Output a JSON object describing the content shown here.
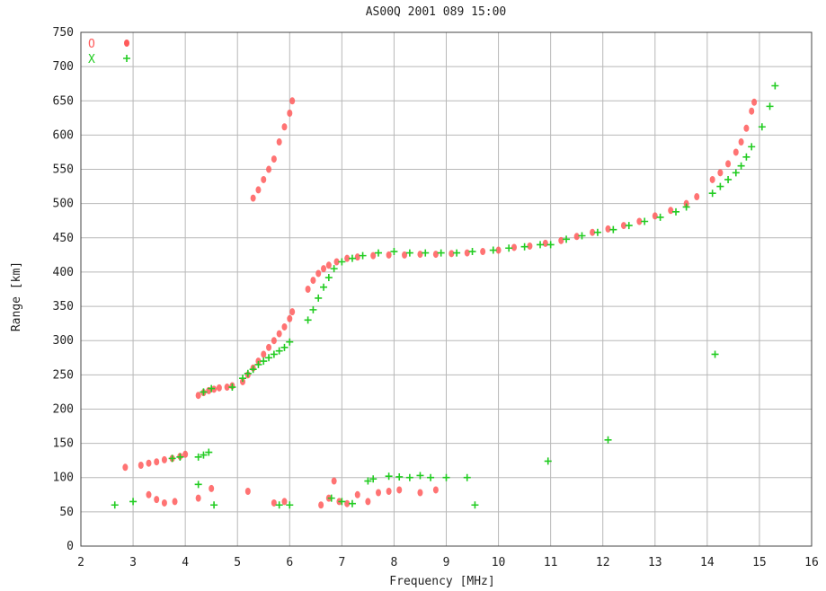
{
  "chart_data": {
    "type": "scatter",
    "title": "AS00Q 2001 089 15:00",
    "xlabel": "Frequency [MHz]",
    "ylabel": "Range [km]",
    "xlim": [
      2,
      16
    ],
    "ylim": [
      0,
      750
    ],
    "xticks": [
      "2",
      "3",
      "4",
      "5",
      "6",
      "7",
      "8",
      "9",
      "10",
      "11",
      "12",
      "13",
      "14",
      "15",
      "16"
    ],
    "yticks": [
      "0",
      "50",
      "100",
      "150",
      "200",
      "250",
      "300",
      "350",
      "400",
      "450",
      "500",
      "550",
      "600",
      "650",
      "700",
      "750"
    ],
    "grid": true,
    "legend_placement": "top-left",
    "series": [
      {
        "name": "O",
        "color": "#ff5a5a",
        "marker": "dot",
        "legend_symbol": "o",
        "points": [
          [
            2.85,
            115
          ],
          [
            3.15,
            118
          ],
          [
            3.3,
            121
          ],
          [
            3.45,
            123
          ],
          [
            3.6,
            126
          ],
          [
            3.75,
            128
          ],
          [
            3.9,
            131
          ],
          [
            4.0,
            134
          ],
          [
            4.25,
            220
          ],
          [
            4.35,
            224
          ],
          [
            4.45,
            227
          ],
          [
            4.55,
            229
          ],
          [
            4.65,
            231
          ],
          [
            4.8,
            232
          ],
          [
            4.9,
            234
          ],
          [
            5.1,
            240
          ],
          [
            5.2,
            250
          ],
          [
            5.3,
            260
          ],
          [
            5.4,
            270
          ],
          [
            5.5,
            280
          ],
          [
            5.6,
            290
          ],
          [
            5.7,
            300
          ],
          [
            5.8,
            310
          ],
          [
            5.9,
            320
          ],
          [
            6.0,
            332
          ],
          [
            6.05,
            342
          ],
          [
            6.35,
            375
          ],
          [
            6.45,
            388
          ],
          [
            6.55,
            398
          ],
          [
            6.65,
            405
          ],
          [
            6.75,
            410
          ],
          [
            6.9,
            415
          ],
          [
            7.1,
            420
          ],
          [
            7.3,
            422
          ],
          [
            7.6,
            424
          ],
          [
            7.9,
            425
          ],
          [
            8.2,
            425
          ],
          [
            8.5,
            426
          ],
          [
            8.8,
            426
          ],
          [
            9.1,
            427
          ],
          [
            9.4,
            428
          ],
          [
            9.7,
            430
          ],
          [
            10.0,
            432
          ],
          [
            10.3,
            436
          ],
          [
            10.6,
            438
          ],
          [
            10.9,
            442
          ],
          [
            11.2,
            446
          ],
          [
            11.5,
            452
          ],
          [
            11.8,
            458
          ],
          [
            12.1,
            463
          ],
          [
            12.4,
            468
          ],
          [
            12.7,
            474
          ],
          [
            13.0,
            482
          ],
          [
            13.3,
            490
          ],
          [
            13.6,
            500
          ],
          [
            13.8,
            510
          ],
          [
            14.1,
            535
          ],
          [
            14.25,
            545
          ],
          [
            14.4,
            558
          ],
          [
            14.55,
            575
          ],
          [
            14.65,
            590
          ],
          [
            14.75,
            610
          ],
          [
            14.85,
            635
          ],
          [
            14.9,
            648
          ],
          [
            5.3,
            508
          ],
          [
            5.4,
            520
          ],
          [
            5.5,
            535
          ],
          [
            5.6,
            550
          ],
          [
            5.7,
            565
          ],
          [
            5.8,
            590
          ],
          [
            5.9,
            612
          ],
          [
            6.0,
            632
          ],
          [
            6.05,
            650
          ],
          [
            3.3,
            75
          ],
          [
            3.45,
            68
          ],
          [
            3.6,
            63
          ],
          [
            3.8,
            65
          ],
          [
            4.25,
            70
          ],
          [
            4.5,
            84
          ],
          [
            5.2,
            80
          ],
          [
            5.7,
            63
          ],
          [
            5.9,
            65
          ],
          [
            6.6,
            60
          ],
          [
            6.75,
            70
          ],
          [
            6.85,
            95
          ],
          [
            6.95,
            65
          ],
          [
            7.1,
            62
          ],
          [
            7.3,
            75
          ],
          [
            7.5,
            65
          ],
          [
            7.7,
            78
          ],
          [
            7.9,
            80
          ],
          [
            8.1,
            82
          ],
          [
            8.5,
            78
          ],
          [
            8.8,
            82
          ]
        ]
      },
      {
        "name": "X",
        "color": "#22cc22",
        "marker": "plus",
        "legend_symbol": "+",
        "points": [
          [
            2.65,
            60
          ],
          [
            3.0,
            65
          ],
          [
            3.75,
            128
          ],
          [
            3.9,
            130
          ],
          [
            4.25,
            130
          ],
          [
            4.35,
            133
          ],
          [
            4.45,
            137
          ],
          [
            4.35,
            225
          ],
          [
            4.5,
            230
          ],
          [
            4.9,
            232
          ],
          [
            5.1,
            245
          ],
          [
            5.2,
            252
          ],
          [
            5.3,
            258
          ],
          [
            5.4,
            265
          ],
          [
            5.5,
            270
          ],
          [
            5.6,
            275
          ],
          [
            5.7,
            280
          ],
          [
            5.8,
            285
          ],
          [
            5.9,
            290
          ],
          [
            6.0,
            298
          ],
          [
            6.35,
            330
          ],
          [
            6.45,
            345
          ],
          [
            6.55,
            362
          ],
          [
            6.65,
            378
          ],
          [
            6.75,
            392
          ],
          [
            6.85,
            405
          ],
          [
            7.0,
            415
          ],
          [
            7.2,
            420
          ],
          [
            7.4,
            424
          ],
          [
            7.7,
            428
          ],
          [
            8.0,
            430
          ],
          [
            8.3,
            428
          ],
          [
            8.6,
            428
          ],
          [
            8.9,
            428
          ],
          [
            9.2,
            428
          ],
          [
            9.5,
            430
          ],
          [
            9.9,
            432
          ],
          [
            10.2,
            435
          ],
          [
            10.5,
            437
          ],
          [
            10.8,
            440
          ],
          [
            11.0,
            440
          ],
          [
            11.3,
            448
          ],
          [
            11.6,
            453
          ],
          [
            11.9,
            458
          ],
          [
            12.2,
            462
          ],
          [
            12.5,
            468
          ],
          [
            12.8,
            474
          ],
          [
            13.1,
            480
          ],
          [
            13.4,
            488
          ],
          [
            13.6,
            495
          ],
          [
            14.1,
            515
          ],
          [
            14.25,
            525
          ],
          [
            14.4,
            535
          ],
          [
            14.55,
            545
          ],
          [
            14.65,
            555
          ],
          [
            14.75,
            568
          ],
          [
            14.85,
            583
          ],
          [
            15.05,
            612
          ],
          [
            15.2,
            642
          ],
          [
            15.3,
            672
          ],
          [
            4.25,
            90
          ],
          [
            4.55,
            60
          ],
          [
            5.8,
            60
          ],
          [
            6.0,
            60
          ],
          [
            6.8,
            70
          ],
          [
            7.0,
            65
          ],
          [
            7.2,
            62
          ],
          [
            7.5,
            95
          ],
          [
            7.6,
            98
          ],
          [
            7.9,
            102
          ],
          [
            8.1,
            101
          ],
          [
            8.3,
            100
          ],
          [
            8.5,
            103
          ],
          [
            8.7,
            100
          ],
          [
            9.0,
            100
          ],
          [
            9.4,
            100
          ],
          [
            9.55,
            60
          ],
          [
            10.95,
            124
          ],
          [
            12.1,
            155
          ],
          [
            14.15,
            280
          ]
        ]
      }
    ]
  }
}
